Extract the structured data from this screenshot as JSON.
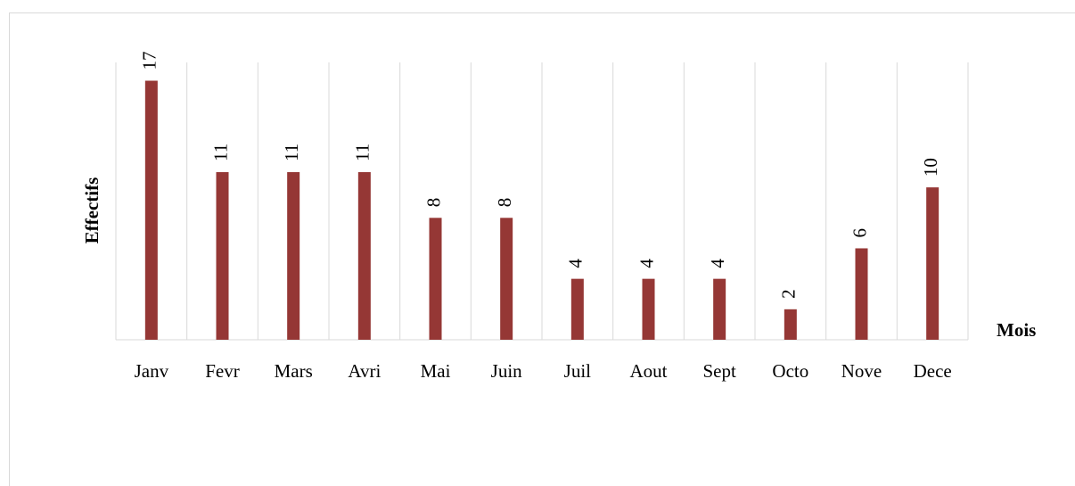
{
  "chart_data": {
    "type": "bar",
    "categories": [
      "Janv",
      "Fevr",
      "Mars",
      "Avri",
      "Mai",
      "Juin",
      "Juil",
      "Aout",
      "Sept",
      "Octo",
      "Nove",
      "Dece"
    ],
    "values": [
      17,
      11,
      11,
      11,
      8,
      8,
      4,
      4,
      4,
      2,
      6,
      10
    ],
    "color": "#953735",
    "x_label": "Mois",
    "y_label": "Effectifs",
    "ylim": [
      0,
      18.2
    ],
    "grid": true
  }
}
